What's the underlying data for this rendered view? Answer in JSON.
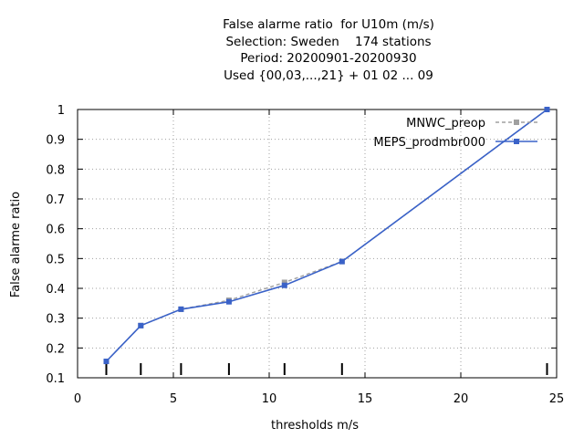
{
  "title_lines": [
    "False alarme ratio  for U10m (m/s)",
    "Selection: Sweden    174 stations",
    "Period: 20200901-20200930",
    "Used {00,03,...,21} + 01 02 ... 09"
  ],
  "chart_data": {
    "type": "line",
    "xlabel": "thresholds m/s",
    "ylabel": "False alarme ratio",
    "xlim": [
      0,
      25
    ],
    "ylim": [
      0.1,
      1.0
    ],
    "x_ticks": [
      0,
      5,
      10,
      15,
      20,
      25
    ],
    "y_ticks": [
      0.1,
      0.2,
      0.3,
      0.4,
      0.5,
      0.6,
      0.7,
      0.8,
      0.9,
      1.0
    ],
    "y_tick_labels": [
      "0.1",
      "0.2",
      "0.3",
      "0.4",
      "0.5",
      "0.6",
      "0.7",
      "0.8",
      "0.9",
      "1"
    ],
    "grid": true,
    "legend_position": "top-right",
    "threshold_markers": [
      1.5,
      3.3,
      5.4,
      7.9,
      10.8,
      13.8,
      24.5
    ],
    "series": [
      {
        "name": "MNWC_preop",
        "color": "#a0a0a0",
        "dashed": true,
        "x": [
          1.5,
          3.3,
          5.4,
          7.9,
          10.8,
          13.8,
          24.5
        ],
        "y": [
          0.155,
          0.275,
          0.33,
          0.36,
          0.42,
          0.49,
          1.0
        ]
      },
      {
        "name": "MEPS_prodmbr000",
        "color": "#3a62c8",
        "dashed": false,
        "x": [
          1.5,
          3.3,
          5.4,
          7.9,
          10.8,
          13.8,
          24.5
        ],
        "y": [
          0.155,
          0.275,
          0.33,
          0.355,
          0.41,
          0.49,
          1.0
        ]
      }
    ]
  }
}
